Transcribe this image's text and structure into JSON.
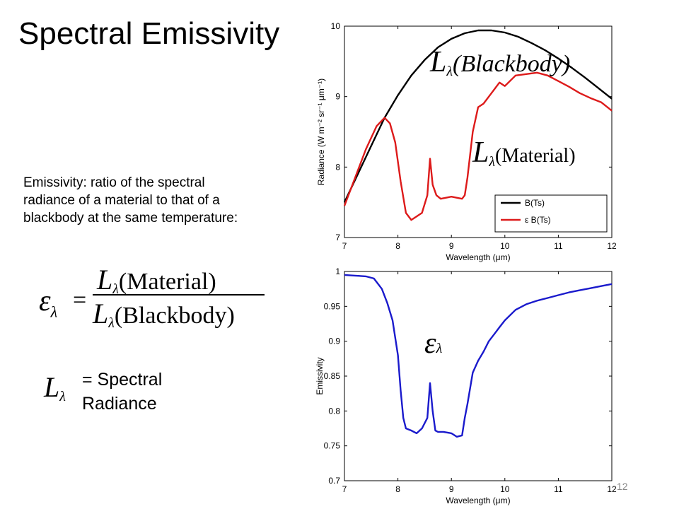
{
  "slide": {
    "title": "Spectral Emissivity",
    "description_lines": [
      "Emissivity: ratio of the spectral",
      "radiance of a material to that of a",
      "blackbody at the same temperature:"
    ],
    "equation": {
      "lhs_symbol": "ε",
      "lhs_subscript": "λ",
      "equals": "=",
      "numerator_L": "L",
      "numerator_sub": "λ",
      "numerator_text": "(Material)",
      "denominator_L": "L",
      "denominator_sub": "λ",
      "denominator_text": "(Blackbody)"
    },
    "definition": {
      "symbol_L": "L",
      "symbol_sub": "λ",
      "line1": "= Spectral",
      "line2": "Radiance"
    },
    "slide_number": "12"
  },
  "chart_data": [
    {
      "type": "line",
      "xlabel": "Wavelength (μm)",
      "ylabel": "Radiance (W m⁻² sr⁻¹ μm⁻¹)",
      "xlim": [
        7,
        12
      ],
      "ylim": [
        7,
        10
      ],
      "xticks": [
        "7",
        "8",
        "9",
        "10",
        "11",
        "12"
      ],
      "yticks": [
        "7",
        "8",
        "9",
        "10"
      ],
      "legend_position": "bottom-right",
      "legend": [
        "B(Ts)",
        "ε B(Ts)"
      ],
      "annotations": {
        "blackbody": {
          "L": "L",
          "sub": "λ",
          "text": "(Blackbody)"
        },
        "material": {
          "L": "L",
          "sub": "λ",
          "text": "(Material)"
        }
      },
      "series": [
        {
          "name": "B(Ts)",
          "color": "#000000",
          "x": [
            7.0,
            7.25,
            7.5,
            7.75,
            8.0,
            8.25,
            8.5,
            8.75,
            9.0,
            9.25,
            9.5,
            9.75,
            10.0,
            10.25,
            10.5,
            10.75,
            11.0,
            11.25,
            11.5,
            11.75,
            12.0
          ],
          "y": [
            7.5,
            7.9,
            8.3,
            8.7,
            9.02,
            9.3,
            9.52,
            9.7,
            9.82,
            9.9,
            9.94,
            9.94,
            9.91,
            9.85,
            9.76,
            9.66,
            9.54,
            9.41,
            9.27,
            9.12,
            8.97
          ]
        },
        {
          "name": "ε B(Ts)",
          "color": "#dd1a1a",
          "x": [
            7.0,
            7.2,
            7.4,
            7.6,
            7.75,
            7.85,
            7.95,
            8.05,
            8.15,
            8.25,
            8.35,
            8.45,
            8.55,
            8.6,
            8.65,
            8.72,
            8.8,
            9.0,
            9.2,
            9.25,
            9.3,
            9.4,
            9.5,
            9.6,
            9.75,
            9.9,
            10.0,
            10.2,
            10.4,
            10.6,
            10.8,
            11.0,
            11.2,
            11.4,
            11.6,
            11.8,
            12.0
          ],
          "y": [
            7.45,
            7.85,
            8.25,
            8.58,
            8.7,
            8.62,
            8.35,
            7.8,
            7.35,
            7.25,
            7.3,
            7.35,
            7.6,
            8.12,
            7.75,
            7.6,
            7.55,
            7.58,
            7.55,
            7.6,
            7.85,
            8.5,
            8.85,
            8.9,
            9.05,
            9.2,
            9.15,
            9.3,
            9.32,
            9.34,
            9.3,
            9.22,
            9.14,
            9.05,
            8.98,
            8.92,
            8.8
          ]
        }
      ]
    },
    {
      "type": "line",
      "xlabel": "Wavelength (μm)",
      "ylabel": "Emissivity",
      "xlim": [
        7,
        12
      ],
      "ylim": [
        0.7,
        1.0
      ],
      "xticks": [
        "7",
        "8",
        "9",
        "10",
        "11",
        "12"
      ],
      "yticks": [
        "0.7",
        "0.75",
        "0.8",
        "0.85",
        "0.9",
        "0.95",
        "1"
      ],
      "annotations": {
        "epsilon": {
          "symbol": "ε",
          "sub": "λ"
        }
      },
      "series": [
        {
          "name": "",
          "color": "#1a1acc",
          "x": [
            7.0,
            7.2,
            7.4,
            7.55,
            7.7,
            7.8,
            7.9,
            8.0,
            8.05,
            8.1,
            8.15,
            8.25,
            8.35,
            8.45,
            8.55,
            8.6,
            8.65,
            8.7,
            8.75,
            8.85,
            9.0,
            9.1,
            9.2,
            9.25,
            9.3,
            9.4,
            9.5,
            9.6,
            9.7,
            9.8,
            9.9,
            10.0,
            10.2,
            10.4,
            10.6,
            10.8,
            11.0,
            11.2,
            11.4,
            11.6,
            11.8,
            12.0
          ],
          "y": [
            0.995,
            0.994,
            0.993,
            0.99,
            0.975,
            0.955,
            0.93,
            0.88,
            0.83,
            0.79,
            0.775,
            0.772,
            0.768,
            0.775,
            0.79,
            0.84,
            0.8,
            0.772,
            0.77,
            0.77,
            0.768,
            0.763,
            0.765,
            0.79,
            0.81,
            0.855,
            0.872,
            0.885,
            0.9,
            0.91,
            0.92,
            0.93,
            0.945,
            0.953,
            0.958,
            0.962,
            0.966,
            0.97,
            0.973,
            0.976,
            0.979,
            0.982
          ]
        }
      ]
    }
  ]
}
